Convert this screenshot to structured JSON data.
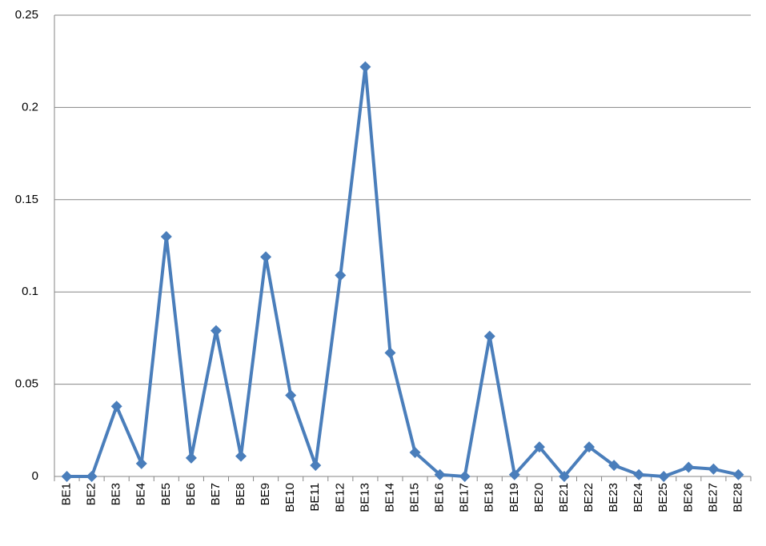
{
  "chart_data": {
    "type": "line",
    "categories": [
      "BE1",
      "BE2",
      "BE3",
      "BE4",
      "BE5",
      "BE6",
      "BE7",
      "BE8",
      "BE9",
      "BE10",
      "BE11",
      "BE12",
      "BE13",
      "BE14",
      "BE15",
      "BE16",
      "BE17",
      "BE18",
      "BE19",
      "BE20",
      "BE21",
      "BE22",
      "BE23",
      "BE24",
      "BE25",
      "BE26",
      "BE27",
      "BE28"
    ],
    "values": [
      0,
      0,
      0.038,
      0.007,
      0.13,
      0.01,
      0.079,
      0.011,
      0.119,
      0.044,
      0.006,
      0.109,
      0.222,
      0.067,
      0.013,
      0.001,
      0,
      0.076,
      0.001,
      0.016,
      0,
      0.016,
      0.006,
      0.001,
      0,
      0.005,
      0.004,
      0.001
    ],
    "color": "#4a7ebb",
    "ylim": [
      0,
      0.25
    ],
    "yticks": [
      0,
      0.05,
      0.1,
      0.15,
      0.2,
      0.25
    ],
    "grid": true
  }
}
